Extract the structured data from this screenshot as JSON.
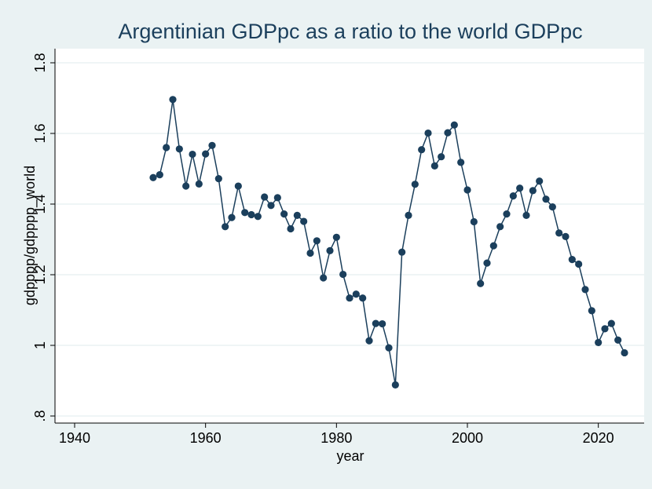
{
  "chart_data": {
    "type": "line",
    "title": "Argentinian GDPpc as a ratio to the world GDPpc",
    "xlabel": "year",
    "ylabel": "gdpppp/gdpppp_world",
    "xlim": [
      1937,
      2027
    ],
    "ylim": [
      0.78,
      1.84
    ],
    "xticks": [
      1940,
      1960,
      1980,
      2000,
      2020
    ],
    "xtick_labels": [
      "1940",
      "1960",
      "1980",
      "2000",
      "2020"
    ],
    "yticks": [
      0.8,
      1.0,
      1.2,
      1.4,
      1.6,
      1.8
    ],
    "ytick_labels": [
      ".8",
      "1",
      "1.2",
      "1.4",
      "1.6",
      "1.8"
    ],
    "grid": true,
    "legend": "none",
    "series": [
      {
        "color": "#1b3f5c",
        "marker": "circle",
        "points": [
          [
            1952,
            1.475
          ],
          [
            1953,
            1.483
          ],
          [
            1954,
            1.56
          ],
          [
            1955,
            1.696
          ],
          [
            1956,
            1.556
          ],
          [
            1957,
            1.451
          ],
          [
            1958,
            1.541
          ],
          [
            1959,
            1.457
          ],
          [
            1960,
            1.542
          ],
          [
            1961,
            1.566
          ],
          [
            1962,
            1.472
          ],
          [
            1963,
            1.336
          ],
          [
            1964,
            1.362
          ],
          [
            1965,
            1.451
          ],
          [
            1966,
            1.376
          ],
          [
            1967,
            1.37
          ],
          [
            1968,
            1.365
          ],
          [
            1969,
            1.42
          ],
          [
            1970,
            1.396
          ],
          [
            1971,
            1.418
          ],
          [
            1972,
            1.372
          ],
          [
            1973,
            1.33
          ],
          [
            1974,
            1.368
          ],
          [
            1975,
            1.351
          ],
          [
            1976,
            1.261
          ],
          [
            1977,
            1.296
          ],
          [
            1978,
            1.191
          ],
          [
            1979,
            1.268
          ],
          [
            1980,
            1.306
          ],
          [
            1981,
            1.201
          ],
          [
            1982,
            1.134
          ],
          [
            1983,
            1.145
          ],
          [
            1984,
            1.134
          ],
          [
            1985,
            1.013
          ],
          [
            1986,
            1.062
          ],
          [
            1987,
            1.061
          ],
          [
            1988,
            0.993
          ],
          [
            1989,
            0.888
          ],
          [
            1990,
            1.264
          ],
          [
            1991,
            1.368
          ],
          [
            1992,
            1.456
          ],
          [
            1993,
            1.554
          ],
          [
            1994,
            1.601
          ],
          [
            1995,
            1.508
          ],
          [
            1996,
            1.534
          ],
          [
            1997,
            1.602
          ],
          [
            1998,
            1.624
          ],
          [
            1999,
            1.518
          ],
          [
            2000,
            1.44
          ],
          [
            2001,
            1.35
          ],
          [
            2002,
            1.175
          ],
          [
            2003,
            1.233
          ],
          [
            2004,
            1.282
          ],
          [
            2005,
            1.336
          ],
          [
            2006,
            1.372
          ],
          [
            2007,
            1.423
          ],
          [
            2008,
            1.445
          ],
          [
            2009,
            1.368
          ],
          [
            2010,
            1.438
          ],
          [
            2011,
            1.465
          ],
          [
            2012,
            1.414
          ],
          [
            2013,
            1.392
          ],
          [
            2014,
            1.318
          ],
          [
            2015,
            1.308
          ],
          [
            2016,
            1.243
          ],
          [
            2017,
            1.23
          ],
          [
            2018,
            1.158
          ],
          [
            2019,
            1.098
          ],
          [
            2020,
            1.008
          ],
          [
            2021,
            1.047
          ],
          [
            2022,
            1.062
          ],
          [
            2023,
            1.015
          ],
          [
            2024,
            0.979
          ]
        ]
      }
    ],
    "colors": {
      "background": "#eaf2f3",
      "plot_area": "#ffffff",
      "grid": "#eaf2f3",
      "series": "#1b3f5c",
      "title": "#1b3f5c"
    }
  }
}
